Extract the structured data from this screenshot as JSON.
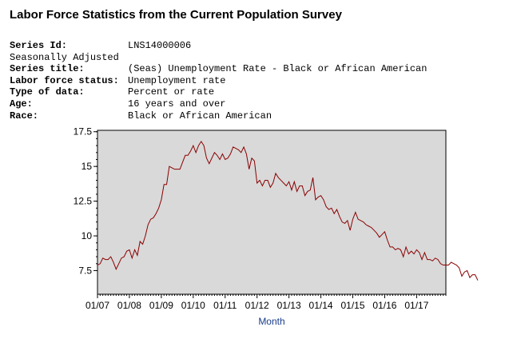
{
  "title": "Labor Force Statistics from the Current Population Survey",
  "meta": {
    "series_id": {
      "label": "Series Id:",
      "value": "LNS14000006"
    },
    "seasonal": "Seasonally Adjusted",
    "series_title": {
      "label": "Series title:",
      "value": "(Seas) Unemployment Rate - Black or African American"
    },
    "labor_status": {
      "label": "Labor force status:",
      "value": "Unemployment rate"
    },
    "data_type": {
      "label": "Type of data:",
      "value": "Percent or rate"
    },
    "age": {
      "label": "Age:",
      "value": "16 years and over"
    },
    "race": {
      "label": "Race:",
      "value": "Black or African American"
    }
  },
  "chart_data": {
    "type": "line",
    "xlabel": "Month",
    "ylabel": "",
    "ylim": [
      5.8,
      17.6
    ],
    "xlim": [
      "2007-01",
      "2017-12"
    ],
    "yticks": [
      "7.5",
      "10",
      "12.5",
      "15",
      "17.5"
    ],
    "xticks": [
      "01/07",
      "01/08",
      "01/09",
      "01/10",
      "01/11",
      "01/12",
      "01/13",
      "01/14",
      "01/15",
      "01/16",
      "01/17"
    ],
    "grid": false,
    "background": "#d9d9d9",
    "line_color": "#8b0000",
    "series": [
      {
        "start": "2007-01",
        "frequency": "monthly",
        "values": [
          7.9,
          8.0,
          8.4,
          8.3,
          8.3,
          8.5,
          8.1,
          7.6,
          8.0,
          8.4,
          8.5,
          8.9,
          9.0,
          8.4,
          9.0,
          8.6,
          9.6,
          9.4,
          10.0,
          10.8,
          11.2,
          11.3,
          11.6,
          12.0,
          12.6,
          13.7,
          13.7,
          15.0,
          14.9,
          14.8,
          14.8,
          14.8,
          15.3,
          15.8,
          15.8,
          16.1,
          16.5,
          16.0,
          16.5,
          16.8,
          16.5,
          15.6,
          15.2,
          15.6,
          16.0,
          15.8,
          15.5,
          15.9,
          15.5,
          15.6,
          15.9,
          16.4,
          16.3,
          16.2,
          16.0,
          16.4,
          15.9,
          14.8,
          15.6,
          15.4,
          13.8,
          14.0,
          13.6,
          14.0,
          14.0,
          13.5,
          13.8,
          14.5,
          14.2,
          14.0,
          13.8,
          13.6,
          13.9,
          13.3,
          13.9,
          13.2,
          13.6,
          13.6,
          12.9,
          13.2,
          13.3,
          14.2,
          12.6,
          12.8,
          12.9,
          12.6,
          12.1,
          11.9,
          12.0,
          11.6,
          11.9,
          11.4,
          11.0,
          10.9,
          11.1,
          10.4,
          11.2,
          11.7,
          11.2,
          11.1,
          11.0,
          10.8,
          10.7,
          10.6,
          10.4,
          10.2,
          9.9,
          10.1,
          10.3,
          9.7,
          9.2,
          9.2,
          9.0,
          9.1,
          9.0,
          8.5,
          9.2,
          8.7,
          8.9,
          8.7,
          9.0,
          8.8,
          8.3,
          8.8,
          8.3,
          8.3,
          8.2,
          8.4,
          8.3,
          8.0,
          7.9,
          7.9,
          7.9,
          8.1,
          8.0,
          7.9,
          7.7,
          7.1,
          7.4,
          7.5,
          7.0,
          7.2,
          7.2,
          6.8
        ]
      }
    ]
  }
}
